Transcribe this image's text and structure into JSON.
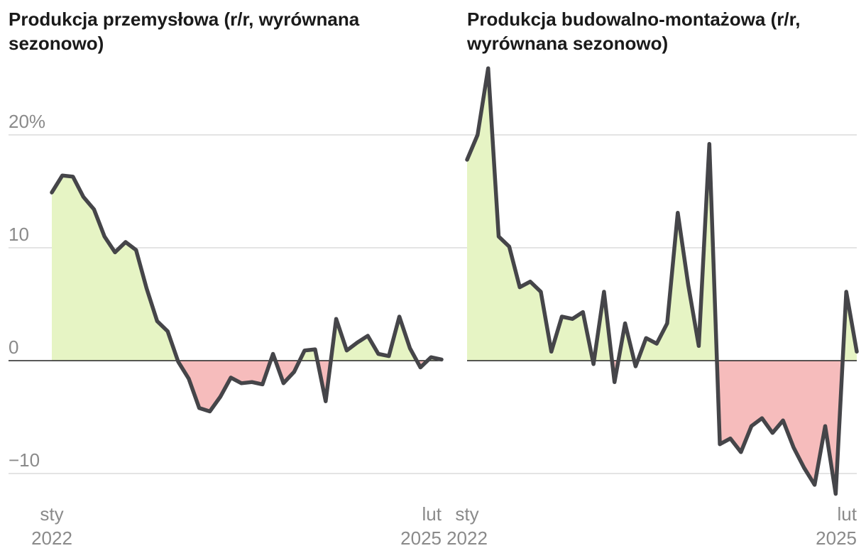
{
  "chart_data": [
    {
      "type": "area",
      "title": "Produkcja przemysłowa (r/r, wyrównana sezonowo)",
      "y_tick_labels": [
        {
          "value": 20,
          "label": "20%"
        },
        {
          "value": 10,
          "label": "10"
        },
        {
          "value": 0,
          "label": "0"
        },
        {
          "value": -10,
          "label": "−10"
        }
      ],
      "x_tick_labels": [
        {
          "index": 0,
          "line1": "sty",
          "line2": "2022"
        },
        {
          "index": 37,
          "line1": "lut",
          "line2": "2025"
        }
      ],
      "ylim": [
        -12,
        26
      ],
      "x_start": "2022-01",
      "x_end": "2025-02",
      "values": [
        14.9,
        16.4,
        16.3,
        14.5,
        13.4,
        11.0,
        9.6,
        10.5,
        9.8,
        6.4,
        3.5,
        2.6,
        -0.1,
        -1.6,
        -4.2,
        -4.5,
        -3.2,
        -1.5,
        -2.0,
        -1.9,
        -2.1,
        0.6,
        -2.0,
        -1.0,
        0.9,
        1.0,
        -3.6,
        3.7,
        0.9,
        1.6,
        2.2,
        0.6,
        0.4,
        3.9,
        1.1,
        -0.6,
        0.3,
        0.1
      ],
      "positive_color": "#e6f4c4",
      "negative_color": "#f6bcbc",
      "line_color": "#454549"
    },
    {
      "type": "area",
      "title": "Produkcja budowalno-montażowa (r/r, wyrównana sezonowo)",
      "y_tick_labels": [
        {
          "value": 20,
          "label": ""
        },
        {
          "value": 10,
          "label": ""
        },
        {
          "value": 0,
          "label": ""
        },
        {
          "value": -10,
          "label": ""
        }
      ],
      "x_tick_labels": [
        {
          "index": 0,
          "line1": "sty",
          "line2": "2022"
        },
        {
          "index": 37,
          "line1": "lut",
          "line2": "2025"
        }
      ],
      "ylim": [
        -12,
        26
      ],
      "x_start": "2022-01",
      "x_end": "2025-02",
      "values": [
        17.8,
        20.0,
        25.9,
        11.0,
        10.1,
        6.5,
        7.0,
        6.1,
        0.8,
        3.9,
        3.7,
        4.3,
        -0.3,
        6.1,
        -1.9,
        3.3,
        -0.5,
        2.0,
        1.5,
        3.3,
        13.1,
        6.7,
        1.3,
        19.2,
        -7.4,
        -6.9,
        -8.1,
        -5.8,
        -5.1,
        -6.4,
        -5.3,
        -7.7,
        -9.5,
        -11.0,
        -5.8,
        -11.8,
        6.1,
        0.8
      ],
      "positive_color": "#e6f4c4",
      "negative_color": "#f6bcbc",
      "line_color": "#454549"
    }
  ]
}
